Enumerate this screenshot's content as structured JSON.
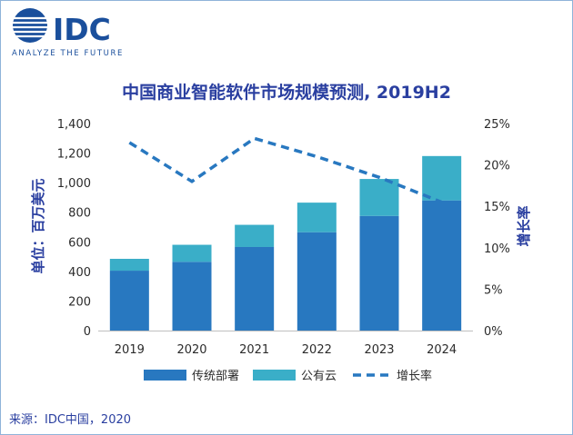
{
  "brand": {
    "name": "IDC",
    "tagline": "ANALYZE THE FUTURE",
    "color": "#1a4f9c"
  },
  "source_note": "来源：IDC中国，2020",
  "colors": {
    "onprem": "#2878c0",
    "cloud": "#3aaec8",
    "growth": "#2878c0",
    "text": "#2a3fa0",
    "axis": "#2b2b2b",
    "border": "#8fb3d9"
  },
  "chart_data": {
    "type": "bar",
    "stacked": true,
    "title": "中国商业智能软件市场规模预测, 2019H2",
    "ylabel": "单位：百万美元",
    "y2label": "增长率",
    "categories": [
      "2019",
      "2020",
      "2021",
      "2022",
      "2023",
      "2024"
    ],
    "ylim": [
      0,
      1400
    ],
    "yticks": [
      "0",
      "200",
      "400",
      "600",
      "800",
      "1,000",
      "1,200",
      "1,400"
    ],
    "y2lim": [
      0,
      25
    ],
    "y2ticks": [
      "0%",
      "5%",
      "10%",
      "15%",
      "20%",
      "25%"
    ],
    "series": [
      {
        "name": "传统部署",
        "type": "bar",
        "values": [
          405,
          465,
          565,
          665,
          775,
          880
        ]
      },
      {
        "name": "公有云",
        "type": "bar",
        "values": [
          80,
          115,
          150,
          200,
          250,
          300
        ]
      },
      {
        "name": "增长率",
        "type": "line",
        "axis": "right",
        "values": [
          22.7,
          18.0,
          23.2,
          21.0,
          18.5,
          15.5
        ]
      }
    ],
    "legend_position": "bottom",
    "grid": false
  }
}
